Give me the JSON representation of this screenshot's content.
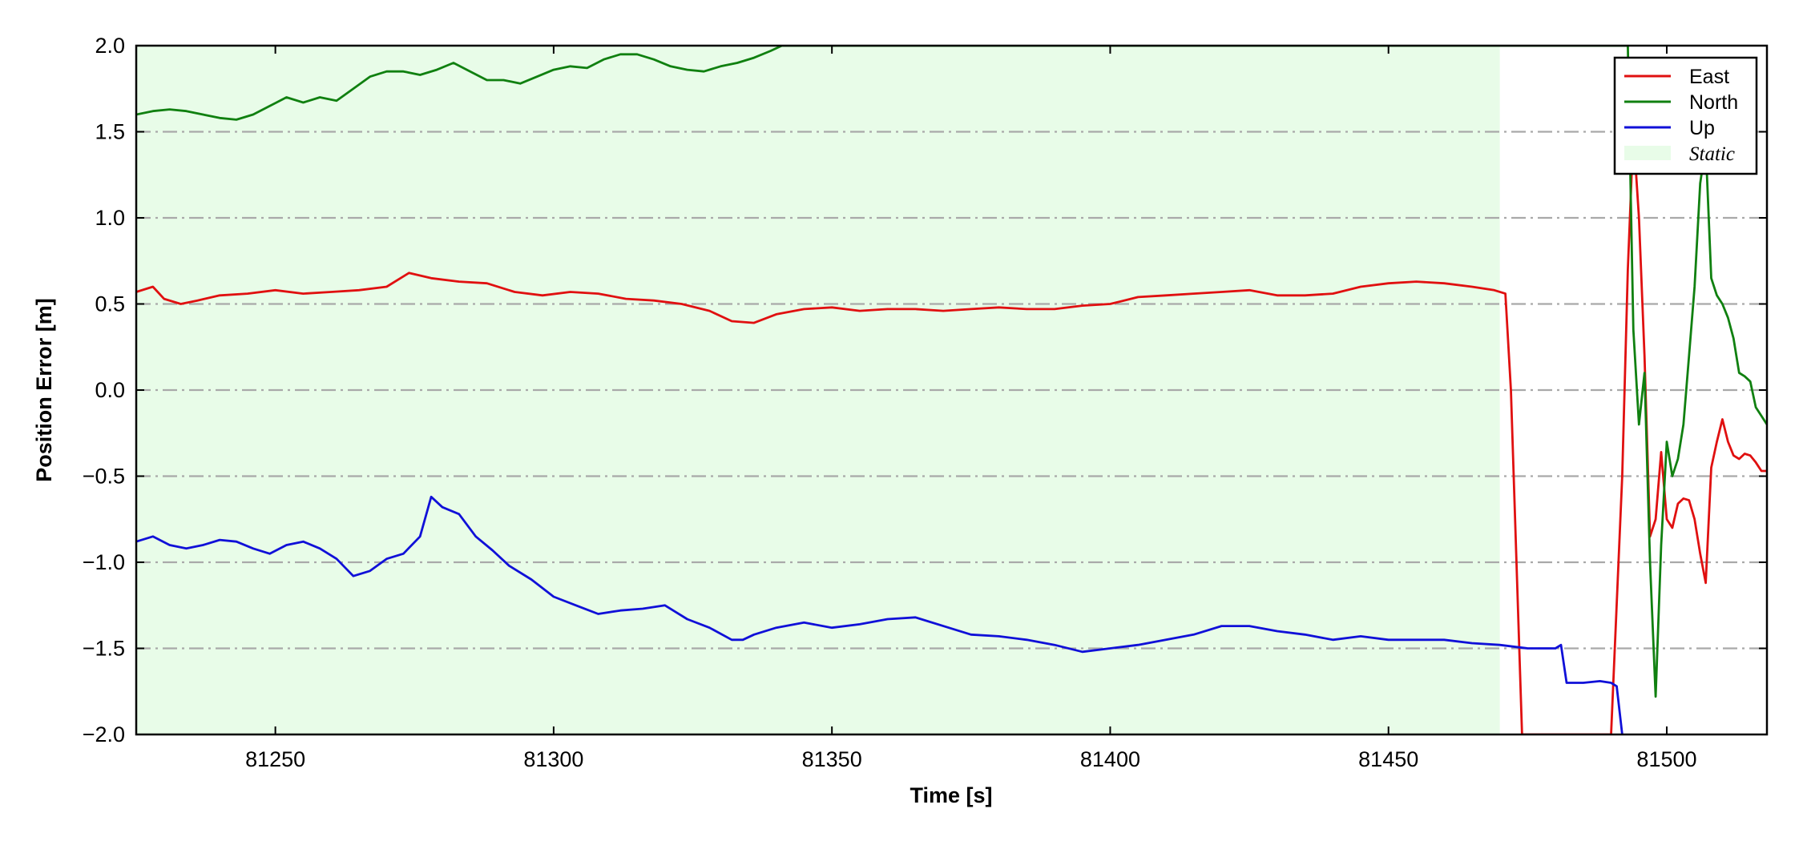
{
  "chart_data": {
    "type": "line",
    "title": "",
    "xlabel": "Time [s]",
    "ylabel": "Position Error [m]",
    "xlim": [
      81225,
      81518
    ],
    "ylim": [
      -2.0,
      2.0
    ],
    "xticks": [
      81250,
      81300,
      81350,
      81400,
      81450,
      81500
    ],
    "xtick_labels": [
      "81250",
      "81300",
      "81350",
      "81400",
      "81450",
      "81500"
    ],
    "yticks": [
      -2.0,
      -1.5,
      -1.0,
      -0.5,
      0.0,
      0.5,
      1.0,
      1.5,
      2.0
    ],
    "ytick_labels": [
      "−2.0",
      "−1.5",
      "−1.0",
      "−0.5",
      "0.0",
      "0.5",
      "1.0",
      "1.5",
      "2.0"
    ],
    "grid": "horizontal dash-dot",
    "legend_position": "top-right",
    "static_region": {
      "label": "Static",
      "x_start": 81225,
      "x_end": 81470,
      "color": "#e8fce8"
    },
    "series": [
      {
        "name": "East",
        "color": "#e01010",
        "x": [
          81225,
          81228,
          81230,
          81233,
          81236,
          81240,
          81245,
          81250,
          81255,
          81260,
          81265,
          81270,
          81274,
          81278,
          81283,
          81288,
          81293,
          81298,
          81303,
          81308,
          81313,
          81318,
          81323,
          81328,
          81332,
          81336,
          81340,
          81345,
          81350,
          81355,
          81360,
          81365,
          81370,
          81375,
          81380,
          81385,
          81390,
          81395,
          81400,
          81405,
          81410,
          81415,
          81420,
          81425,
          81430,
          81435,
          81440,
          81445,
          81450,
          81455,
          81460,
          81465,
          81469,
          81471,
          81472,
          81474,
          81490,
          81492,
          81493,
          81494,
          81495,
          81496,
          81497,
          81498,
          81499,
          81500,
          81501,
          81502,
          81503,
          81504,
          81505,
          81506,
          81507,
          81508,
          81509,
          81510,
          81511,
          81512,
          81513,
          81514,
          81515,
          81516,
          81517,
          81518
        ],
        "y": [
          0.57,
          0.6,
          0.53,
          0.5,
          0.52,
          0.55,
          0.56,
          0.58,
          0.56,
          0.57,
          0.58,
          0.6,
          0.68,
          0.65,
          0.63,
          0.62,
          0.57,
          0.55,
          0.57,
          0.56,
          0.53,
          0.52,
          0.5,
          0.46,
          0.4,
          0.39,
          0.44,
          0.47,
          0.48,
          0.46,
          0.47,
          0.47,
          0.46,
          0.47,
          0.48,
          0.47,
          0.47,
          0.49,
          0.5,
          0.54,
          0.55,
          0.56,
          0.57,
          0.58,
          0.55,
          0.55,
          0.56,
          0.6,
          0.62,
          0.63,
          0.62,
          0.6,
          0.58,
          0.56,
          0.0,
          -2.0,
          -2.0,
          -0.5,
          0.7,
          1.5,
          1.0,
          0.2,
          -0.85,
          -0.75,
          -0.36,
          -0.75,
          -0.8,
          -0.66,
          -0.63,
          -0.64,
          -0.75,
          -0.95,
          -1.12,
          -0.45,
          -0.3,
          -0.17,
          -0.3,
          -0.38,
          -0.4,
          -0.37,
          -0.38,
          -0.42,
          -0.47,
          -0.47
        ]
      },
      {
        "name": "North",
        "color": "#108010",
        "x": [
          81225,
          81228,
          81231,
          81234,
          81237,
          81240,
          81243,
          81246,
          81249,
          81252,
          81255,
          81258,
          81261,
          81264,
          81267,
          81270,
          81273,
          81276,
          81279,
          81282,
          81285,
          81288,
          81291,
          81294,
          81297,
          81300,
          81303,
          81306,
          81309,
          81312,
          81315,
          81318,
          81321,
          81324,
          81327,
          81330,
          81333,
          81336,
          81339,
          81341,
          81493,
          81494,
          81495,
          81496,
          81497,
          81498,
          81499,
          81500,
          81501,
          81502,
          81503,
          81504,
          81505,
          81506,
          81507,
          81508,
          81509,
          81510,
          81511,
          81512,
          81513,
          81514,
          81515,
          81516,
          81517,
          81518
        ],
        "y": [
          1.6,
          1.62,
          1.63,
          1.62,
          1.6,
          1.58,
          1.57,
          1.6,
          1.65,
          1.7,
          1.67,
          1.7,
          1.68,
          1.75,
          1.82,
          1.85,
          1.85,
          1.83,
          1.86,
          1.9,
          1.85,
          1.8,
          1.8,
          1.78,
          1.82,
          1.86,
          1.88,
          1.87,
          1.92,
          1.95,
          1.95,
          1.92,
          1.88,
          1.86,
          1.85,
          1.88,
          1.9,
          1.93,
          1.97,
          2.0,
          2.0,
          0.35,
          -0.2,
          0.1,
          -1.0,
          -1.78,
          -0.9,
          -0.3,
          -0.5,
          -0.4,
          -0.2,
          0.2,
          0.6,
          1.2,
          1.42,
          0.65,
          0.55,
          0.5,
          0.42,
          0.3,
          0.1,
          0.08,
          0.05,
          -0.1,
          -0.15,
          -0.2
        ]
      },
      {
        "name": "Up",
        "color": "#1010d8",
        "x": [
          81225,
          81228,
          81231,
          81234,
          81237,
          81240,
          81243,
          81246,
          81249,
          81252,
          81255,
          81258,
          81261,
          81264,
          81267,
          81270,
          81273,
          81276,
          81278,
          81280,
          81283,
          81286,
          81289,
          81292,
          81296,
          81300,
          81304,
          81308,
          81312,
          81316,
          81320,
          81324,
          81328,
          81332,
          81334,
          81336,
          81340,
          81345,
          81350,
          81355,
          81360,
          81365,
          81370,
          81375,
          81380,
          81385,
          81390,
          81395,
          81400,
          81405,
          81410,
          81415,
          81420,
          81425,
          81430,
          81435,
          81440,
          81445,
          81450,
          81455,
          81460,
          81465,
          81470,
          81475,
          81480,
          81481,
          81482,
          81485,
          81488,
          81490,
          81491,
          81492
        ],
        "y": [
          -0.88,
          -0.85,
          -0.9,
          -0.92,
          -0.9,
          -0.87,
          -0.88,
          -0.92,
          -0.95,
          -0.9,
          -0.88,
          -0.92,
          -0.98,
          -1.08,
          -1.05,
          -0.98,
          -0.95,
          -0.85,
          -0.62,
          -0.68,
          -0.72,
          -0.85,
          -0.93,
          -1.02,
          -1.1,
          -1.2,
          -1.25,
          -1.3,
          -1.28,
          -1.27,
          -1.25,
          -1.33,
          -1.38,
          -1.45,
          -1.45,
          -1.42,
          -1.38,
          -1.35,
          -1.38,
          -1.36,
          -1.33,
          -1.32,
          -1.37,
          -1.42,
          -1.43,
          -1.45,
          -1.48,
          -1.52,
          -1.5,
          -1.48,
          -1.45,
          -1.42,
          -1.37,
          -1.37,
          -1.4,
          -1.42,
          -1.45,
          -1.43,
          -1.45,
          -1.45,
          -1.45,
          -1.47,
          -1.48,
          -1.5,
          -1.5,
          -1.48,
          -1.7,
          -1.7,
          -1.69,
          -1.7,
          -1.72,
          -2.0
        ]
      }
    ]
  }
}
